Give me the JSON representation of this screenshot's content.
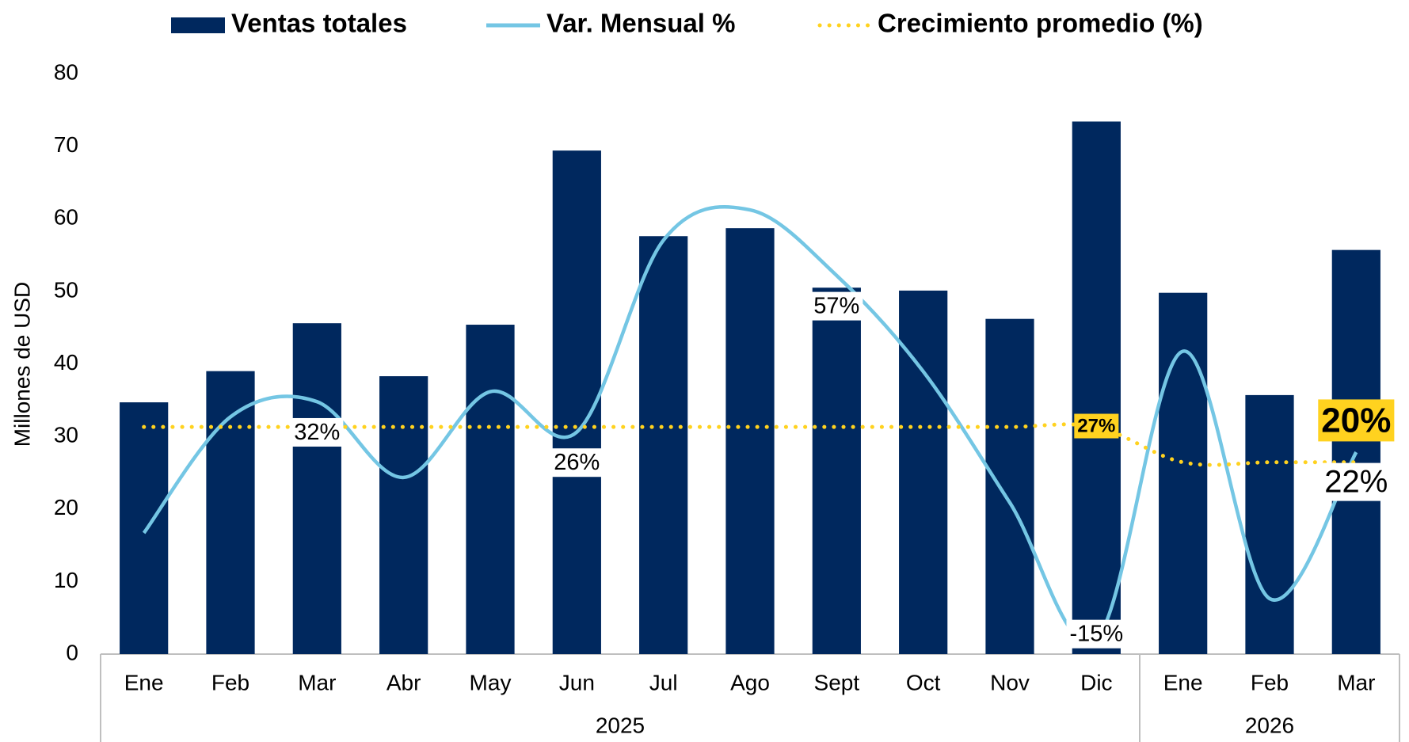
{
  "chart_data": {
    "type": "bar",
    "y_label": "Millones de USD",
    "groups": [
      {
        "name": "2025",
        "categories": [
          "Ene",
          "Feb",
          "Mar",
          "Abr",
          "May",
          "Jun",
          "Jul",
          "Ago",
          "Sept",
          "Oct",
          "Nov",
          "Dic"
        ]
      },
      {
        "name": "2026",
        "categories": [
          "Ene",
          "Feb",
          "Mar"
        ]
      }
    ],
    "series": [
      {
        "name": "Ventas totales",
        "type": "bar",
        "color": "#00285e",
        "values": [
          34.7,
          39,
          45.6,
          38.3,
          45.4,
          69.4,
          57.6,
          58.7,
          50.5,
          50.1,
          46.2,
          73.4,
          49.8,
          35.7,
          55.7
        ]
      },
      {
        "name": "Var. Mensual %",
        "type": "line",
        "axis": "y2",
        "color": "#74c6e4",
        "values": [
          6,
          29,
          32,
          17,
          34,
          26,
          64,
          70,
          57,
          38,
          12,
          -15,
          42,
          -7,
          22
        ],
        "value_labels": [
          null,
          null,
          "32%",
          null,
          null,
          "26%",
          null,
          null,
          "57%",
          null,
          null,
          "-15%",
          null,
          null,
          "22%"
        ]
      },
      {
        "name": "Crecimiento promedio (%)",
        "type": "dotted",
        "axis": "y2",
        "color": "#ffd21f",
        "values": [
          27,
          27,
          27,
          27,
          27,
          27,
          27,
          27,
          27,
          27,
          27,
          27,
          20,
          20,
          20
        ],
        "value_labels": [
          null,
          null,
          null,
          null,
          null,
          null,
          null,
          null,
          null,
          null,
          null,
          "27%",
          null,
          null,
          "20%"
        ]
      }
    ],
    "ylim": [
      0,
      80
    ],
    "yticks": [
      0,
      10,
      20,
      30,
      40,
      50,
      60,
      70,
      80
    ],
    "y2lim": [
      -18,
      97
    ],
    "legend": "top"
  }
}
